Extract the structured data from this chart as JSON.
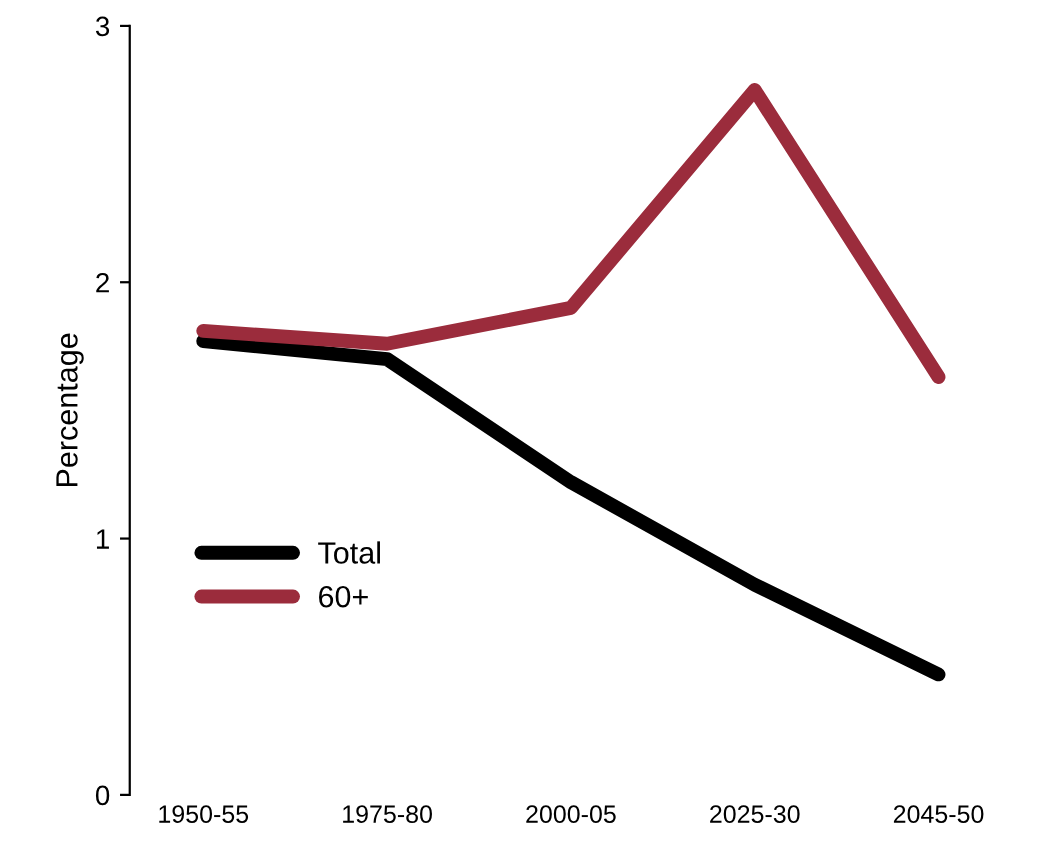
{
  "chart_data": {
    "type": "line",
    "ylabel": "Percentage",
    "categories": [
      "1950-55",
      "1975-80",
      "2000-05",
      "2025-30",
      "2045-50"
    ],
    "series": [
      {
        "name": "Total",
        "color": "#000000",
        "values": [
          1.77,
          1.7,
          1.22,
          0.82,
          0.47
        ]
      },
      {
        "name": "60+",
        "color": "#9b2c3c",
        "values": [
          1.81,
          1.76,
          1.9,
          2.75,
          1.63
        ]
      }
    ],
    "ylim": [
      0,
      3
    ],
    "yticks": [
      0,
      1,
      2,
      3
    ],
    "grid": false,
    "legend": "bottom left",
    "marker": "none",
    "line_style": "solid"
  }
}
